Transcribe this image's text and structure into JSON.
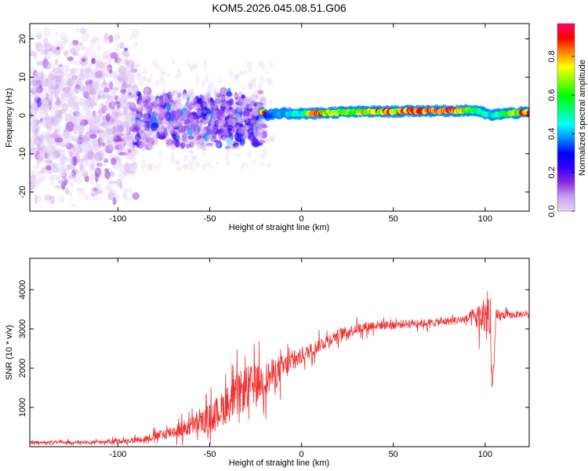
{
  "title": "KOM5.2026.045.08.51.G06",
  "chart_data": [
    {
      "type": "heatmap",
      "title": "KOM5.2026.045.08.51.G06",
      "xlabel": "Height of straight line (km)",
      "ylabel": "Frequency (Hz)",
      "xlim": [
        -148,
        124
      ],
      "ylim": [
        -25,
        24
      ],
      "xticks": [
        -100,
        -50,
        0,
        50,
        100
      ],
      "yticks": [
        -20,
        -10,
        0,
        10,
        20
      ],
      "x_tick_labels": [
        "-100",
        "-50",
        "0",
        "50",
        "100"
      ],
      "y_tick_labels": [
        "-20",
        "-10",
        "0",
        "10",
        "20"
      ],
      "colorbar": {
        "label": "Normalized spectral amplitude",
        "range": [
          0,
          0.97
        ],
        "ticks": [
          0.0,
          0.2,
          0.4,
          0.6,
          0.8
        ],
        "tick_labels": [
          "0.0",
          "0.2",
          "0.4",
          "0.6",
          "0.8"
        ],
        "colors": [
          "#e6d5f5",
          "#c8a0f0",
          "#8a2be2",
          "#3300ff",
          "#0000ff",
          "#0088ff",
          "#00ffff",
          "#00ff80",
          "#00ff00",
          "#80ff00",
          "#ffff00",
          "#ff8800",
          "#ff0000",
          "#ff0066"
        ]
      },
      "band_regions": [
        {
          "x_range": [
            -148,
            -90
          ],
          "f_center": 0,
          "f_spread": 24,
          "amplitude": 0.12,
          "density": "high"
        },
        {
          "x_range": [
            -90,
            -20
          ],
          "f_center": -1,
          "f_spread": 8,
          "amplitude": 0.25,
          "density": "medium"
        },
        {
          "x_range": [
            -20,
            124
          ],
          "f_center": 1,
          "f_spread": 1,
          "amplitude": 0.6,
          "density": "line"
        }
      ],
      "ridge": [
        {
          "x": -20,
          "f": 0.0,
          "amp": 0.3
        },
        {
          "x": -10,
          "f": 0.5,
          "amp": 0.45
        },
        {
          "x": 0,
          "f": 0.5,
          "amp": 0.55
        },
        {
          "x": 7,
          "f": 0.5,
          "amp": 0.9
        },
        {
          "x": 20,
          "f": 0.8,
          "amp": 0.7
        },
        {
          "x": 35,
          "f": 1.0,
          "amp": 0.8
        },
        {
          "x": 50,
          "f": 1.0,
          "amp": 0.85
        },
        {
          "x": 65,
          "f": 1.2,
          "amp": 0.95
        },
        {
          "x": 80,
          "f": 1.2,
          "amp": 0.95
        },
        {
          "x": 95,
          "f": 1.3,
          "amp": 0.6
        },
        {
          "x": 103,
          "f": 0.0,
          "amp": 0.5
        },
        {
          "x": 110,
          "f": 0.5,
          "amp": 0.65
        },
        {
          "x": 124,
          "f": 0.8,
          "amp": 0.9
        }
      ]
    },
    {
      "type": "line",
      "xlabel": "Height of straight line (km)",
      "ylabel": "SNR (10 * v/v)",
      "xlim": [
        -148,
        124
      ],
      "ylim": [
        0,
        4800
      ],
      "xticks": [
        -100,
        -50,
        0,
        50,
        100
      ],
      "yticks": [
        1000,
        2000,
        3000,
        4000
      ],
      "x_tick_labels": [
        "-100",
        "-50",
        "0",
        "50",
        "100"
      ],
      "y_tick_labels": [
        "1000",
        "2000",
        "3000",
        "4000"
      ],
      "color": "#ee3333",
      "series": [
        {
          "name": "SNR",
          "x": [
            -148,
            -130,
            -110,
            -95,
            -85,
            -75,
            -65,
            -55,
            -50,
            -45,
            -40,
            -35,
            -30,
            -25,
            -20,
            -15,
            -10,
            -5,
            0,
            10,
            20,
            30,
            40,
            50,
            60,
            70,
            80,
            90,
            98,
            102,
            104,
            106,
            110,
            115,
            124
          ],
          "values": [
            100,
            110,
            120,
            150,
            200,
            320,
            450,
            600,
            750,
            900,
            1100,
            1300,
            1500,
            1600,
            1700,
            1850,
            2000,
            2150,
            2300,
            2600,
            2850,
            3000,
            3100,
            3100,
            3150,
            3150,
            3200,
            3250,
            3300,
            3300,
            1500,
            3300,
            3350,
            3350,
            3400
          ],
          "noise": [
            60,
            60,
            70,
            90,
            120,
            200,
            300,
            400,
            500,
            600,
            700,
            800,
            800,
            700,
            650,
            600,
            500,
            400,
            300,
            250,
            220,
            200,
            180,
            160,
            150,
            150,
            150,
            160,
            600,
            1200,
            200,
            300,
            150,
            130,
            120
          ]
        }
      ]
    }
  ]
}
